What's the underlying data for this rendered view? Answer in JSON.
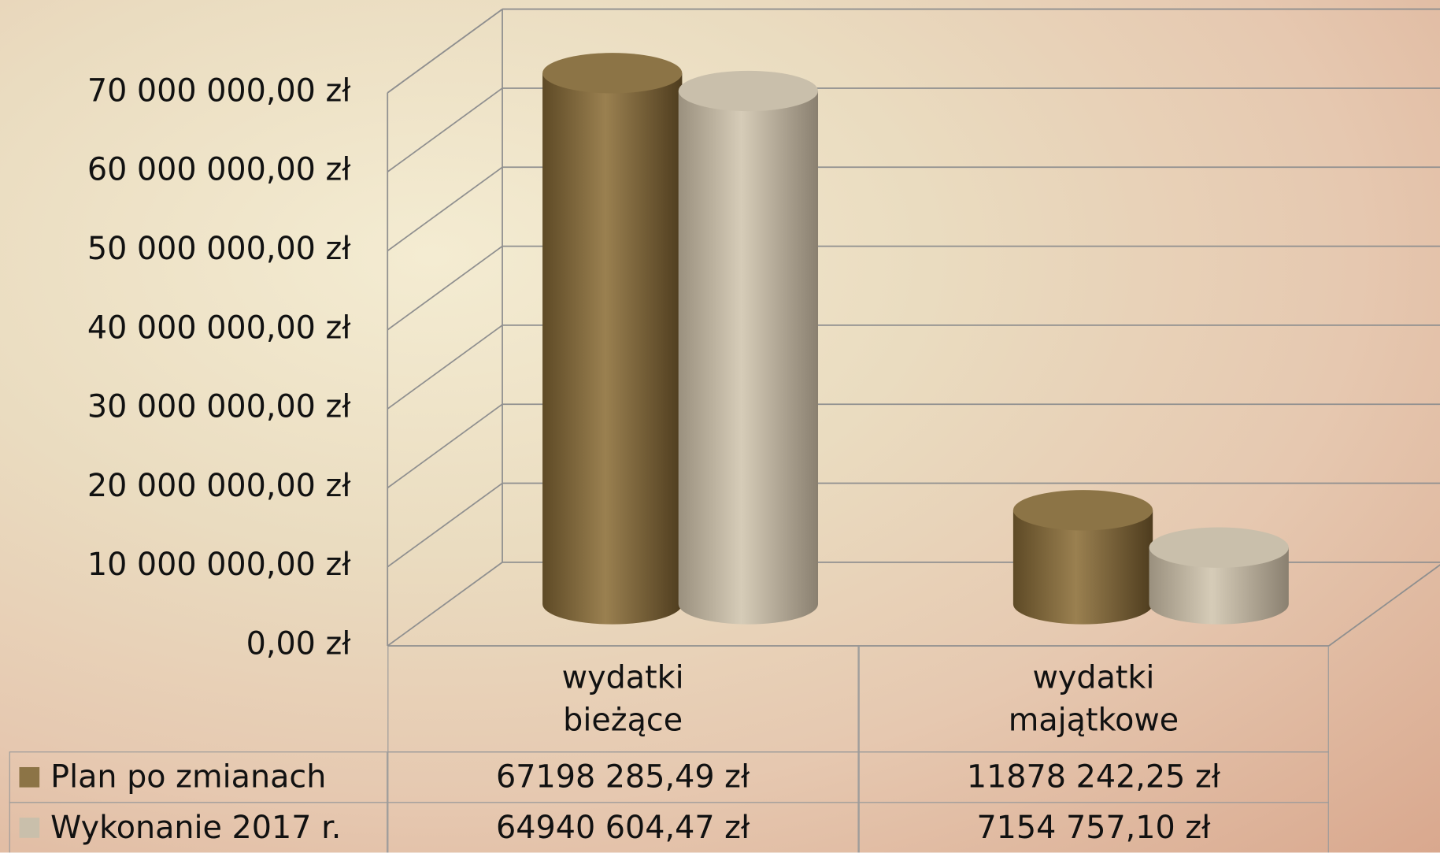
{
  "chart_data": {
    "type": "bar3d_cylinder",
    "categories": [
      "wydatki bieżące",
      "wydatki majątkowe"
    ],
    "series": [
      {
        "name": "Plan po zmianach",
        "color": "#8c7446",
        "values": [
          67198285.49,
          11878242.25
        ],
        "value_labels": [
          "67198 285,49 zł",
          "11878 242,25 zł"
        ]
      },
      {
        "name": "Wykonanie 2017 r.",
        "color": "#c9bfab",
        "values": [
          64940604.47,
          7154757.1
        ],
        "value_labels": [
          "64940 604,47 zł",
          "7154 757,10 zł"
        ]
      }
    ],
    "ylim": [
      0,
      70000000
    ],
    "yticks": [
      {
        "value": 0,
        "label": "0,00 zł"
      },
      {
        "value": 10000000,
        "label": "10 000 000,00 zł"
      },
      {
        "value": 20000000,
        "label": "20 000 000,00 zł"
      },
      {
        "value": 30000000,
        "label": "30 000 000,00 zł"
      },
      {
        "value": 40000000,
        "label": "40 000 000,00 zł"
      },
      {
        "value": 50000000,
        "label": "50 000 000,00 zł"
      },
      {
        "value": 60000000,
        "label": "60 000 000,00 zł"
      },
      {
        "value": 70000000,
        "label": "70 000 000,00 zł"
      }
    ],
    "grid": true,
    "legend": "table"
  }
}
